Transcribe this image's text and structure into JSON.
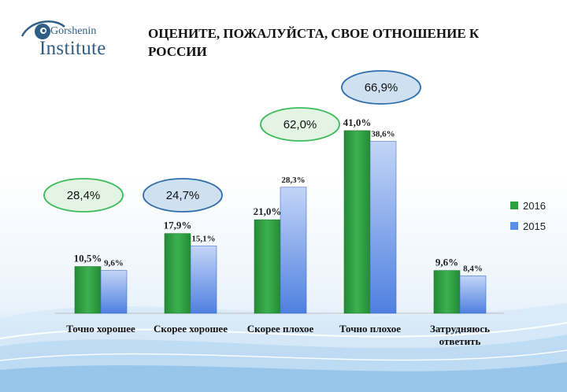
{
  "logo": {
    "line1": "Gorshenin",
    "line2": "Institute",
    "icon": "eye-logo-icon"
  },
  "header": {
    "title_line1": "ОЦЕНИТЕ, ПОЖАЛУЙСТА, СВОЕ ОТНОШЕНИЕ К",
    "title_line2": "РОССИИ"
  },
  "colors": {
    "green": "#2e9e3f",
    "blue": "#5b8ee8",
    "blue_light": "#b9cdf6",
    "ellipse_green_fill": "#e4f4e4",
    "ellipse_green_stroke": "#3dbb5a",
    "ellipse_blue_fill": "#cfe0f0",
    "ellipse_blue_stroke": "#2f6fae"
  },
  "chart_data": {
    "type": "bar",
    "categories": [
      "Точно хорошее",
      "Скорее хорошее",
      "Скорее плохое",
      "Точно плохое",
      "Затрудняюсь ответить"
    ],
    "series": [
      {
        "name": "2016",
        "values": [
          10.5,
          17.9,
          21.0,
          41.0,
          9.6
        ],
        "labels": [
          "10,5%",
          "17,9%",
          "21,0%",
          "41,0%",
          "9,6%"
        ]
      },
      {
        "name": "2015",
        "values": [
          9.6,
          15.1,
          28.3,
          38.6,
          8.4
        ],
        "labels": [
          "9,6%",
          "15,1%",
          "28,3%",
          "38,6%",
          "8,4%"
        ]
      }
    ],
    "ylim": [
      0,
      42
    ],
    "legend_position": "right",
    "annotations": [
      {
        "text": "28,4%",
        "style": "green"
      },
      {
        "text": "24,7%",
        "style": "blue"
      },
      {
        "text": "62,0%",
        "style": "green"
      },
      {
        "text": "66,9%",
        "style": "blue"
      }
    ]
  }
}
